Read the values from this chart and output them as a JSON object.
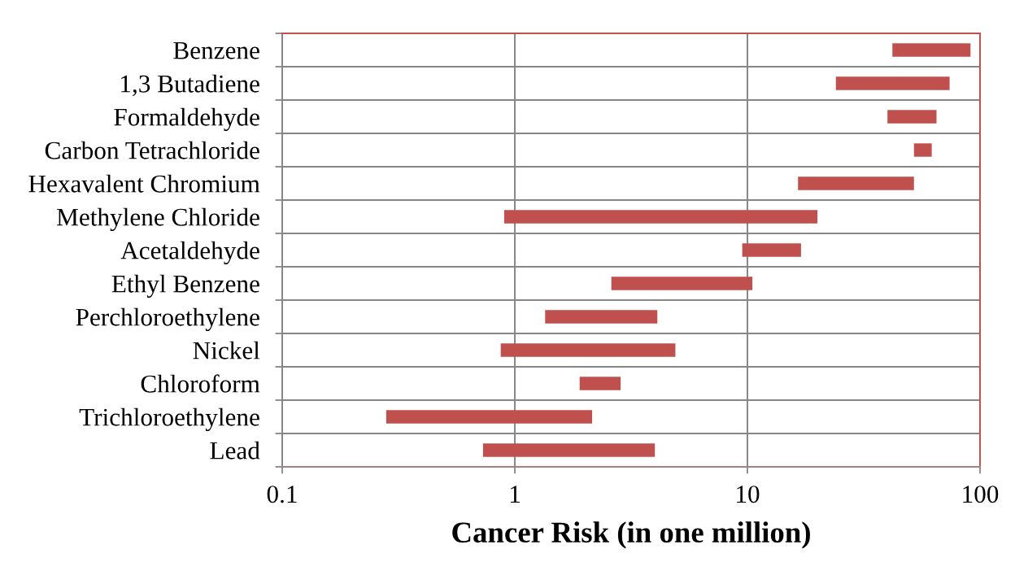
{
  "chart_data": {
    "type": "bar",
    "orientation": "horizontal",
    "categories": [
      "Benzene",
      "1,3 Butadiene",
      "Formaldehyde",
      "Carbon Tetrachloride",
      "Hexavalent Chromium",
      "Methylene Chloride",
      "Acetaldehyde",
      "Ethyl Benzene",
      "Perchloroethylene",
      "Nickel",
      "Chloroform",
      "Trichloroethylene",
      "Lead"
    ],
    "base": [
      42,
      24,
      40,
      52,
      16.5,
      0.9,
      9.5,
      2.6,
      1.35,
      0.87,
      1.9,
      0.28,
      0.73
    ],
    "values": [
      49,
      50,
      25,
      10,
      35.5,
      19.1,
      7.5,
      7.9,
      2.75,
      4.03,
      0.95,
      1.87,
      3.27
    ],
    "color": "#c0504d",
    "xlabel": "Cancer Risk (in one million)",
    "xlim": [
      0.1,
      100
    ],
    "xticks": [
      0.1,
      1,
      10,
      100
    ],
    "log": "x",
    "grid": true
  }
}
